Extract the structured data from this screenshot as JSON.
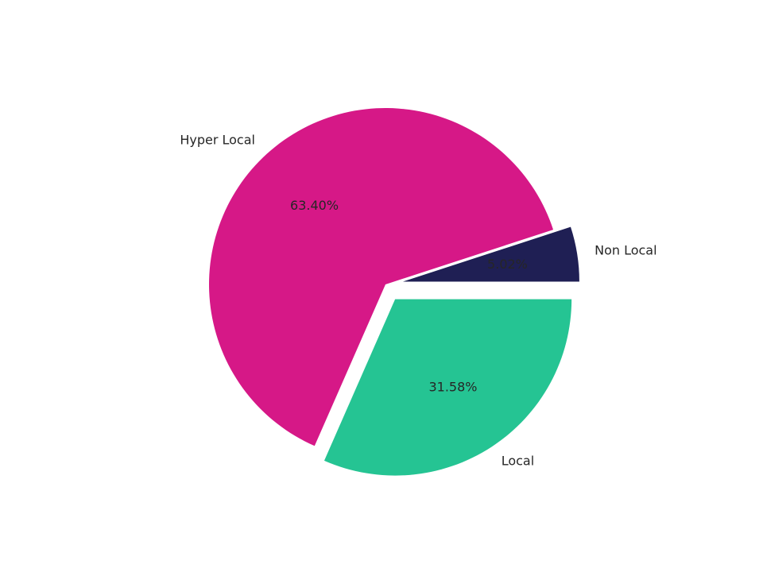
{
  "chart_data": {
    "type": "pie",
    "title": "",
    "slices": [
      {
        "label": "Non Local",
        "value": 5.02,
        "pct_label": "5.02%",
        "color": "#1f1f54",
        "explode": true
      },
      {
        "label": "Hyper Local",
        "value": 63.4,
        "pct_label": "63.40%",
        "color": "#d61887",
        "explode": false
      },
      {
        "label": "Local",
        "value": 31.58,
        "pct_label": "31.58%",
        "color": "#25c493",
        "explode": true
      }
    ],
    "start_angle_deg": 0,
    "direction": "counterclockwise",
    "legend": "none"
  }
}
